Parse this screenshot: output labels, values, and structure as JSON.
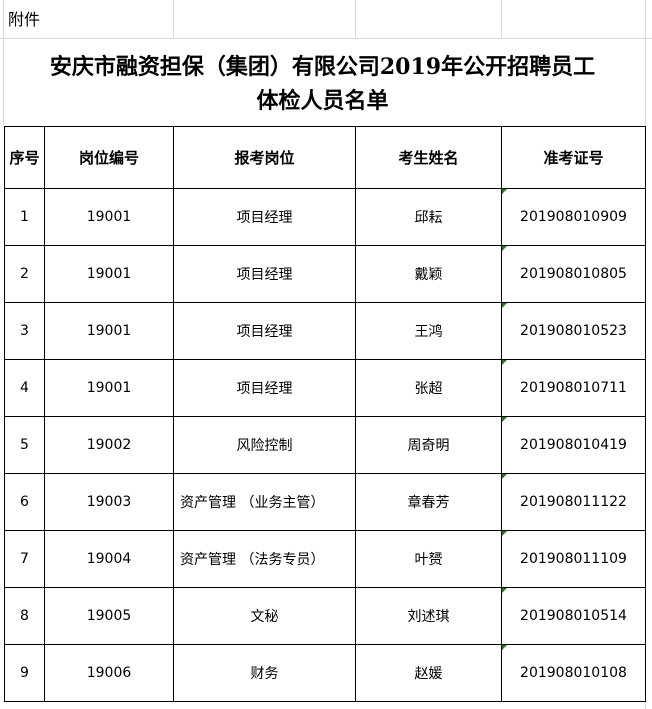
{
  "note": "附件",
  "title_line1": "安庆市融资担保（集团）有限公司2019年公开招聘员工",
  "title_line2": "体检人员名单",
  "headers": [
    "序号",
    "岗位编号",
    "报考岗位",
    "考生姓名",
    "准考证号"
  ],
  "rows": [
    [
      "1",
      "19001",
      "项目经理",
      "邱耘",
      "201908010909"
    ],
    [
      "2",
      "19001",
      "项目经理",
      "戴颖",
      "201908010805"
    ],
    [
      "3",
      "19001",
      "项目经理",
      "王鸿",
      "201908010523"
    ],
    [
      "4",
      "19001",
      "项目经理",
      "张超",
      "201908010711"
    ],
    [
      "5",
      "19002",
      "风险控制",
      "周奇明",
      "201908010419"
    ],
    [
      "6",
      "19003",
      "资产管理 （业务主管）",
      "章春芳",
      "201908011122"
    ],
    [
      "7",
      "19004",
      "资产管理 （法务专员）",
      "叶赟",
      "201908011109"
    ],
    [
      "8",
      "19005",
      "文秘",
      "刘述琪",
      "201908010514"
    ],
    [
      "9",
      "19006",
      "财务",
      "赵媛",
      "201908010108"
    ]
  ]
}
